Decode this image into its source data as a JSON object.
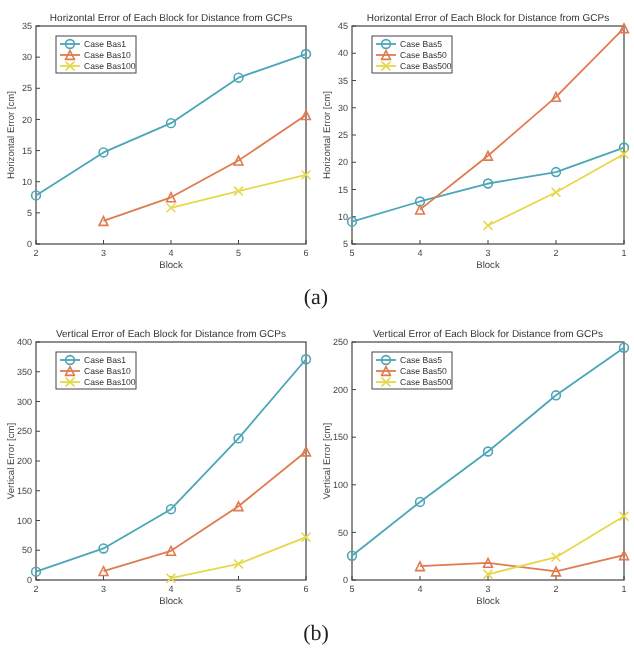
{
  "chart_data": [
    {
      "type": "line",
      "title": "Horizontal Error of Each Block for Distance from GCPs",
      "xlabel": "Block",
      "ylabel": "Horizontal Error [cm]",
      "x": [
        2,
        3,
        4,
        5,
        6
      ],
      "xlim": [
        2,
        6
      ],
      "xticks": [
        2,
        3,
        4,
        5,
        6
      ],
      "ylim": [
        0,
        35
      ],
      "yticks": [
        0,
        5,
        10,
        15,
        20,
        25,
        30,
        35
      ],
      "legend": "top left",
      "grid": false,
      "annotations": [
        "(a)"
      ],
      "series": [
        {
          "name": "Case Bas1",
          "color": "#4ba6b8",
          "marker": "circle",
          "values": [
            7.8,
            14.7,
            19.4,
            26.7,
            30.5
          ]
        },
        {
          "name": "Case Bas10",
          "color": "#e07b50",
          "marker": "triangle",
          "values": [
            null,
            3.7,
            7.5,
            13.4,
            20.7
          ]
        },
        {
          "name": "Case Bas100",
          "color": "#e6d84a",
          "marker": "cross",
          "values": [
            null,
            null,
            5.8,
            8.5,
            11.1
          ]
        }
      ]
    },
    {
      "type": "line",
      "title": "Horizontal Error of Each Block for Distance from GCPs",
      "xlabel": "Block",
      "ylabel": "Horizontal Error [cm]",
      "x": [
        5,
        4,
        3,
        2,
        1
      ],
      "xlim": [
        5,
        1
      ],
      "xticks": [
        5,
        4,
        3,
        2,
        1
      ],
      "ylim": [
        5,
        45
      ],
      "yticks": [
        5,
        10,
        15,
        20,
        25,
        30,
        35,
        40,
        45
      ],
      "legend": "top left",
      "grid": false,
      "series": [
        {
          "name": "Case Bas5",
          "color": "#4ba6b8",
          "marker": "circle",
          "values": [
            9.1,
            12.8,
            16.1,
            18.2,
            22.7
          ]
        },
        {
          "name": "Case Bas50",
          "color": "#e07b50",
          "marker": "triangle",
          "values": [
            null,
            11.3,
            21.2,
            32,
            44.6
          ]
        },
        {
          "name": "Case Bas500",
          "color": "#e6d84a",
          "marker": "cross",
          "values": [
            null,
            null,
            8.4,
            14.5,
            21.5
          ]
        }
      ]
    },
    {
      "type": "line",
      "title": "Vertical Error of Each Block for Distance from GCPs",
      "xlabel": "Block",
      "ylabel": "Vertical Error [cm]",
      "x": [
        2,
        3,
        4,
        5,
        6
      ],
      "xlim": [
        2,
        6
      ],
      "xticks": [
        2,
        3,
        4,
        5,
        6
      ],
      "ylim": [
        0,
        400
      ],
      "yticks": [
        0,
        50,
        100,
        150,
        200,
        250,
        300,
        350,
        400
      ],
      "legend": "top left",
      "grid": false,
      "annotations": [
        "(b)"
      ],
      "series": [
        {
          "name": "Case Bas1",
          "color": "#4ba6b8",
          "marker": "circle",
          "values": [
            14,
            53,
            119,
            238,
            371
          ]
        },
        {
          "name": "Case Bas10",
          "color": "#e07b50",
          "marker": "triangle",
          "values": [
            null,
            15,
            49,
            124,
            216
          ]
        },
        {
          "name": "Case Bas100",
          "color": "#e6d84a",
          "marker": "cross",
          "values": [
            null,
            null,
            3,
            27,
            72
          ]
        }
      ]
    },
    {
      "type": "line",
      "title": "Vertical Error of Each Block for Distance from GCPs",
      "xlabel": "Block",
      "ylabel": "Vertical Error [cm]",
      "x": [
        5,
        4,
        3,
        2,
        1
      ],
      "xlim": [
        5,
        1
      ],
      "xticks": [
        5,
        4,
        3,
        2,
        1
      ],
      "ylim": [
        0,
        250
      ],
      "yticks": [
        0,
        50,
        100,
        150,
        200,
        250
      ],
      "legend": "top left",
      "grid": false,
      "series": [
        {
          "name": "Case Bas5",
          "color": "#4ba6b8",
          "marker": "circle",
          "values": [
            25.5,
            82,
            135,
            194,
            244
          ]
        },
        {
          "name": "Case Bas50",
          "color": "#e07b50",
          "marker": "triangle",
          "values": [
            null,
            14.5,
            18,
            9,
            26
          ]
        },
        {
          "name": "Case Bas500",
          "color": "#e6d84a",
          "marker": "cross",
          "values": [
            null,
            null,
            6,
            24,
            67
          ]
        }
      ]
    }
  ]
}
